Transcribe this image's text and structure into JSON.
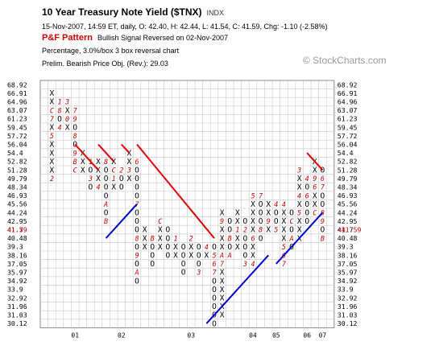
{
  "header": {
    "title": "10 Year Treasury Note Yield ($TNX)",
    "exchange": "INDX",
    "quote": "15-Nov-2007, 14:59 ET, daily, O: 42.40, H: 42.44, L: 41.54, C: 41.59, Chg: -1.10 (-2.58%)",
    "pattern_label": "P&F Pattern",
    "pattern_text": "Bullish Signal Reversed on 02-Nov-2007",
    "scaling": "Percentage, 3.0%/box 3 box reversal chart",
    "objective": "Prelim. Bearish Price Obj. (Rev.): 29.03",
    "watermark": "© StockCharts.com"
  },
  "chart_data": {
    "type": "point-and-figure",
    "title": "10 Year Treasury Note Yield ($TNX)",
    "box_size": "3.0%",
    "reversal": 3,
    "price_levels": [
      "68.92",
      "66.91",
      "64.96",
      "63.07",
      "61.23",
      "59.45",
      "57.72",
      "56.04",
      "54.4",
      "52.82",
      "51.28",
      "49.79",
      "48.34",
      "46.93",
      "45.56",
      "44.24",
      "42.95",
      "41.7",
      "40.48",
      "39.3",
      "38.16",
      "37.05",
      "35.97",
      "34.92",
      "33.9",
      "32.92",
      "31.96",
      "31.03",
      "30.12"
    ],
    "current_price_label": "41.59",
    "x_tick_labels": [
      {
        "label": "01",
        "col": 4
      },
      {
        "label": "02",
        "col": 10
      },
      {
        "label": "03",
        "col": 19
      },
      {
        "label": "04",
        "col": 27
      },
      {
        "label": "05",
        "col": 30
      },
      {
        "label": "06",
        "col": 34
      },
      {
        "label": "07",
        "col": 36
      }
    ],
    "columns": [
      {
        "col": 1,
        "type": "X",
        "top": 1,
        "bottom": 11,
        "marks": {
          "3": "C",
          "4": "7",
          "6": "5",
          "11": "2"
        }
      },
      {
        "col": 2,
        "type": "O",
        "top": 2,
        "bottom": 5,
        "marks": {
          "2": "1",
          "3": "8",
          "5": "4"
        }
      },
      {
        "col": 3,
        "type": "X",
        "top": 2,
        "bottom": 5,
        "marks": {
          "2": "3",
          "4": "0"
        }
      },
      {
        "col": 4,
        "type": "O",
        "top": 3,
        "bottom": 10,
        "marks": {
          "3": "7",
          "4": "9",
          "6": "8",
          "8": "9",
          "9": "B",
          "10": "C"
        }
      },
      {
        "col": 5,
        "type": "X",
        "top": 8,
        "bottom": 10
      },
      {
        "col": 6,
        "type": "O",
        "top": 9,
        "bottom": 12,
        "marks": {
          "9": "1",
          "11": "3"
        }
      },
      {
        "col": 7,
        "type": "X",
        "top": 9,
        "bottom": 12,
        "marks": {
          "12": "4"
        }
      },
      {
        "col": 8,
        "type": "O",
        "top": 9,
        "bottom": 16,
        "marks": {
          "9": "8",
          "14": "A",
          "16": "B"
        }
      },
      {
        "col": 9,
        "type": "X",
        "top": 9,
        "bottom": 12,
        "marks": {
          "10": "C",
          "11": "1"
        }
      },
      {
        "col": 10,
        "type": "O",
        "top": 10,
        "bottom": 12,
        "marks": {
          "10": "2"
        }
      },
      {
        "col": 11,
        "type": "X",
        "top": 8,
        "bottom": 11,
        "marks": {
          "10": "3"
        }
      },
      {
        "col": 12,
        "type": "O",
        "top": 9,
        "bottom": 23,
        "marks": {
          "9": "6",
          "14": "7",
          "18": "8",
          "20": "9",
          "22": "A"
        }
      },
      {
        "col": 13,
        "type": "X",
        "top": 17,
        "bottom": 19
      },
      {
        "col": 14,
        "type": "O",
        "top": 18,
        "bottom": 21,
        "marks": {
          "18": "B"
        }
      },
      {
        "col": 15,
        "type": "X",
        "top": 16,
        "bottom": 19,
        "marks": {
          "16": "C"
        }
      },
      {
        "col": 16,
        "type": "O",
        "top": 17,
        "bottom": 20
      },
      {
        "col": 17,
        "type": "X",
        "top": 18,
        "bottom": 20,
        "marks": {
          "18": "1"
        }
      },
      {
        "col": 18,
        "type": "O",
        "top": 19,
        "bottom": 22
      },
      {
        "col": 19,
        "type": "X",
        "top": 18,
        "bottom": 20,
        "marks": {
          "18": "2"
        }
      },
      {
        "col": 20,
        "type": "O",
        "top": 19,
        "bottom": 22,
        "marks": {
          "22": "3"
        }
      },
      {
        "col": 21,
        "type": "X",
        "top": 19,
        "bottom": 20,
        "marks": {
          "19": "4"
        }
      },
      {
        "col": 22,
        "type": "O",
        "top": 19,
        "bottom": 28,
        "marks": {
          "20": "5",
          "21": "6",
          "22": "7"
        }
      },
      {
        "col": 23,
        "type": "X",
        "top": 15,
        "bottom": 27,
        "marks": {
          "20": "A",
          "16": "9",
          "21": "7"
        }
      },
      {
        "col": 24,
        "type": "O",
        "top": 16,
        "bottom": 20,
        "marks": {
          "18": "B",
          "20": "A"
        }
      },
      {
        "col": 25,
        "type": "X",
        "top": 15,
        "bottom": 19,
        "marks": {
          "17": "1"
        }
      },
      {
        "col": 26,
        "type": "O",
        "top": 16,
        "bottom": 21,
        "marks": {
          "17": "2",
          "21": "3"
        }
      },
      {
        "col": 27,
        "type": "X",
        "top": 13,
        "bottom": 21,
        "marks": {
          "13": "5",
          "18": "6",
          "21": "4"
        }
      },
      {
        "col": 28,
        "type": "O",
        "top": 13,
        "bottom": 18,
        "marks": {
          "13": "7",
          "17": "8"
        }
      },
      {
        "col": 29,
        "type": "X",
        "top": 14,
        "bottom": 17,
        "marks": {
          "16": "9"
        }
      },
      {
        "col": 30,
        "type": "O",
        "top": 14,
        "bottom": 17,
        "marks": {
          "14": "4",
          "17": "5"
        }
      },
      {
        "col": 31,
        "type": "X",
        "top": 14,
        "bottom": 21,
        "marks": {
          "14": "4",
          "19": "5",
          "20": "6",
          "21": "7"
        }
      },
      {
        "col": 32,
        "type": "O",
        "top": 15,
        "bottom": 19,
        "marks": {
          "16": "C",
          "18": "A"
        }
      },
      {
        "col": 33,
        "type": "X",
        "top": 10,
        "bottom": 18,
        "marks": {
          "10": "3",
          "13": "4",
          "15": "5"
        }
      },
      {
        "col": 34,
        "type": "O",
        "top": 11,
        "bottom": 16,
        "marks": {
          "11": "4",
          "13": "6"
        }
      },
      {
        "col": 35,
        "type": "X",
        "top": 9,
        "bottom": 15,
        "marks": {
          "11": "9",
          "12": "6",
          "15": "C"
        }
      },
      {
        "col": 36,
        "type": "O",
        "top": 10,
        "bottom": 18,
        "marks": {
          "11": "6",
          "12": "7",
          "15": "8",
          "16": "9",
          "18": "B"
        }
      }
    ],
    "trendlines": [
      {
        "type": "bearish-resistance",
        "color": "#dd0000",
        "from": [
          12.5,
          7.5
        ],
        "to": [
          22.5,
          18.5
        ]
      },
      {
        "type": "bearish-resistance",
        "color": "#dd0000",
        "from": [
          4.5,
          7.5
        ],
        "to": [
          7.5,
          10.5
        ]
      },
      {
        "type": "bearish-resistance",
        "color": "#dd0000",
        "from": [
          7.5,
          7.5
        ],
        "to": [
          9.5,
          9.5
        ]
      },
      {
        "type": "bearish-resistance",
        "color": "#dd0000",
        "from": [
          10.5,
          7.5
        ],
        "to": [
          11.5,
          8.5
        ]
      },
      {
        "type": "bearish-resistance",
        "color": "#dd0000",
        "from": [
          34.5,
          8.5
        ],
        "to": [
          36.5,
          10.5
        ]
      },
      {
        "type": "bullish-support",
        "color": "#0000cc",
        "from": [
          8.5,
          18.5
        ],
        "to": [
          12.5,
          14.5
        ]
      },
      {
        "type": "bullish-support",
        "color": "#0000cc",
        "from": [
          21.5,
          28.5
        ],
        "to": [
          29.5,
          20.5
        ]
      },
      {
        "type": "bullish-support",
        "color": "#0000cc",
        "from": [
          30.5,
          21.5
        ],
        "to": [
          36.5,
          15.5
        ]
      }
    ],
    "colors": {
      "x": "#000000",
      "o": "#000000",
      "month_mark": "#cc0000",
      "grid": "#c8c8c8",
      "bearish_line": "#dd0000",
      "bullish_line": "#0000cc",
      "current_price": "#cc0000"
    }
  }
}
